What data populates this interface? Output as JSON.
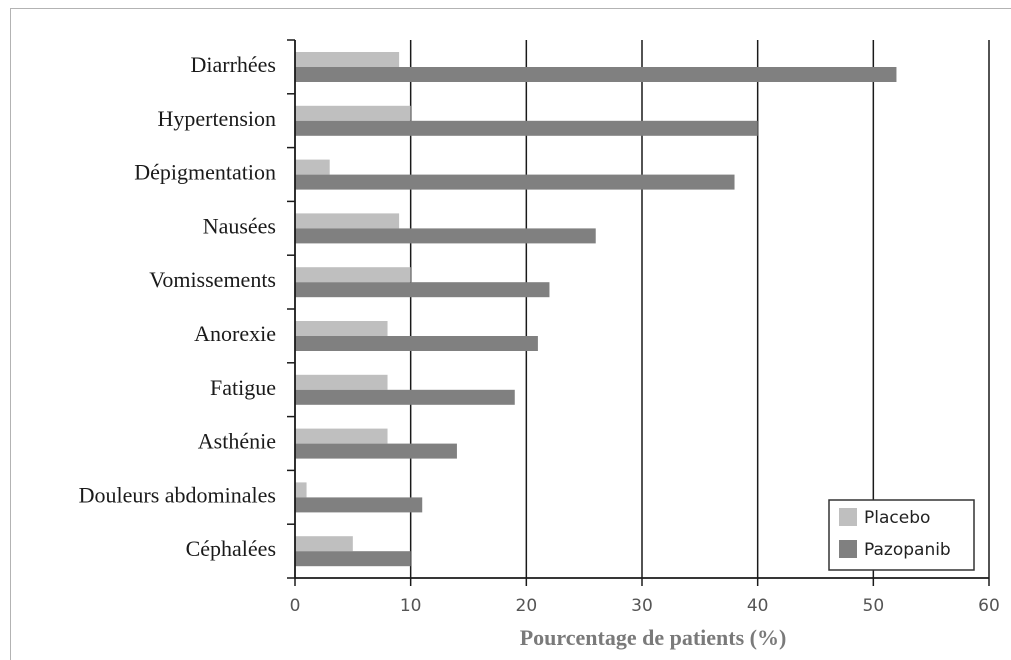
{
  "chart_data": {
    "type": "bar",
    "orientation": "horizontal",
    "categories": [
      "Diarrhées",
      "Hypertension",
      "Dépigmentation",
      "Nausées",
      "Vomissements",
      "Anorexie",
      "Fatigue",
      "Asthénie",
      "Douleurs abdominales",
      "Céphalées"
    ],
    "series": [
      {
        "name": "Placebo",
        "color": "#bfbfbf",
        "values": [
          9,
          10,
          3,
          9,
          10,
          8,
          8,
          8,
          1,
          5
        ]
      },
      {
        "name": "Pazopanib",
        "color": "#808080",
        "values": [
          52,
          40,
          38,
          26,
          22,
          21,
          19,
          14,
          11,
          10
        ]
      }
    ],
    "xlabel": "Pourcentage de patients (%)",
    "ylabel": "",
    "xlim": [
      0,
      60
    ],
    "xticks": [
      0,
      10,
      20,
      30,
      40,
      50,
      60
    ],
    "grid": "vertical",
    "legend": "bottom-right"
  }
}
